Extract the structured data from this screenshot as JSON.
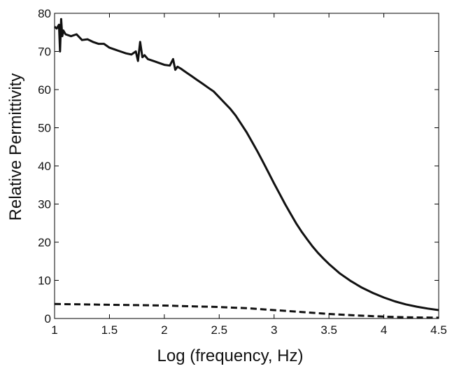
{
  "chart_data": {
    "type": "line",
    "xlabel": "Log (frequency, Hz)",
    "ylabel": "Relative Permittivity",
    "xlim": [
      1,
      4.5
    ],
    "ylim": [
      0,
      80
    ],
    "xticks": [
      1,
      1.5,
      2,
      2.5,
      3,
      3.5,
      4,
      4.5
    ],
    "xtick_labels": [
      "1",
      "1.5",
      "2",
      "2.5",
      "3",
      "3.5",
      "4",
      "4.5"
    ],
    "yticks": [
      0,
      10,
      20,
      30,
      40,
      50,
      60,
      70,
      80
    ],
    "ytick_labels": [
      "0",
      "10",
      "20",
      "30",
      "40",
      "50",
      "60",
      "70",
      "80"
    ],
    "grid": false,
    "colors": {
      "line": "#111111",
      "axis": "#000000"
    },
    "series": [
      {
        "style": "solid",
        "x": [
          1.0,
          1.02,
          1.04,
          1.05,
          1.06,
          1.07,
          1.08,
          1.1,
          1.15,
          1.2,
          1.25,
          1.3,
          1.35,
          1.4,
          1.45,
          1.5,
          1.55,
          1.6,
          1.65,
          1.7,
          1.74,
          1.76,
          1.78,
          1.8,
          1.82,
          1.85,
          1.9,
          1.95,
          2.0,
          2.05,
          2.08,
          2.1,
          2.12,
          2.15,
          2.2,
          2.25,
          2.3,
          2.35,
          2.4,
          2.45,
          2.5,
          2.55,
          2.6,
          2.65,
          2.7,
          2.75,
          2.8,
          2.85,
          2.9,
          2.95,
          3.0,
          3.05,
          3.1,
          3.15,
          3.2,
          3.25,
          3.3,
          3.35,
          3.4,
          3.45,
          3.5,
          3.6,
          3.7,
          3.8,
          3.9,
          4.0,
          4.1,
          4.2,
          4.3,
          4.4,
          4.5
        ],
        "y": [
          76.5,
          76,
          77,
          70,
          78.5,
          74,
          75.5,
          74.5,
          74,
          74.5,
          73,
          73.2,
          72.5,
          72,
          72,
          71,
          70.5,
          70,
          69.5,
          69.2,
          70,
          67.5,
          72.5,
          68.5,
          69,
          68,
          67.5,
          67,
          66.5,
          66.3,
          68,
          65.2,
          66,
          65.5,
          64.5,
          63.5,
          62.5,
          61.5,
          60.5,
          59.5,
          58,
          56.5,
          55,
          53.2,
          51,
          48.8,
          46.3,
          43.7,
          41,
          38.2,
          35.4,
          32.7,
          30,
          27.5,
          25,
          22.8,
          20.8,
          18.9,
          17.2,
          15.7,
          14.3,
          11.8,
          9.8,
          8.1,
          6.7,
          5.5,
          4.5,
          3.7,
          3.1,
          2.6,
          2.2
        ]
      },
      {
        "style": "dashed",
        "x": [
          1.0,
          1.25,
          1.5,
          1.75,
          2.0,
          2.25,
          2.5,
          2.75,
          3.0,
          3.25,
          3.5,
          3.75,
          4.0,
          4.25,
          4.5
        ],
        "y": [
          3.8,
          3.7,
          3.6,
          3.5,
          3.4,
          3.2,
          3.0,
          2.7,
          2.2,
          1.7,
          1.2,
          0.8,
          0.5,
          0.3,
          0.2
        ]
      }
    ]
  }
}
